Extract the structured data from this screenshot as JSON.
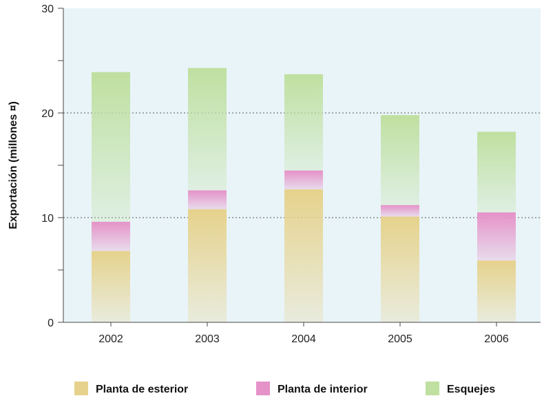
{
  "chart_data": {
    "type": "bar",
    "stacked": true,
    "categories": [
      "2002",
      "2003",
      "2004",
      "2005",
      "2006"
    ],
    "series": [
      {
        "name": "Planta de esterior",
        "values": [
          6.8,
          10.8,
          12.7,
          10.1,
          5.9
        ],
        "color": "#e6d28c"
      },
      {
        "name": "Planta de interior",
        "values": [
          2.8,
          1.8,
          1.8,
          1.1,
          4.6
        ],
        "color": "#e592c8"
      },
      {
        "name": "Esquejes",
        "values": [
          14.3,
          11.7,
          9.2,
          8.6,
          7.7
        ],
        "color": "#bfe0a0"
      }
    ],
    "ylabel": "Exportación (millones ¤)",
    "xlabel": "",
    "ylim": [
      0,
      30
    ],
    "yticks": [
      0,
      10,
      20,
      30
    ],
    "grid": "dotted at 10 and 20",
    "legend_position": "bottom",
    "plot_background": "#e9f4f8"
  }
}
